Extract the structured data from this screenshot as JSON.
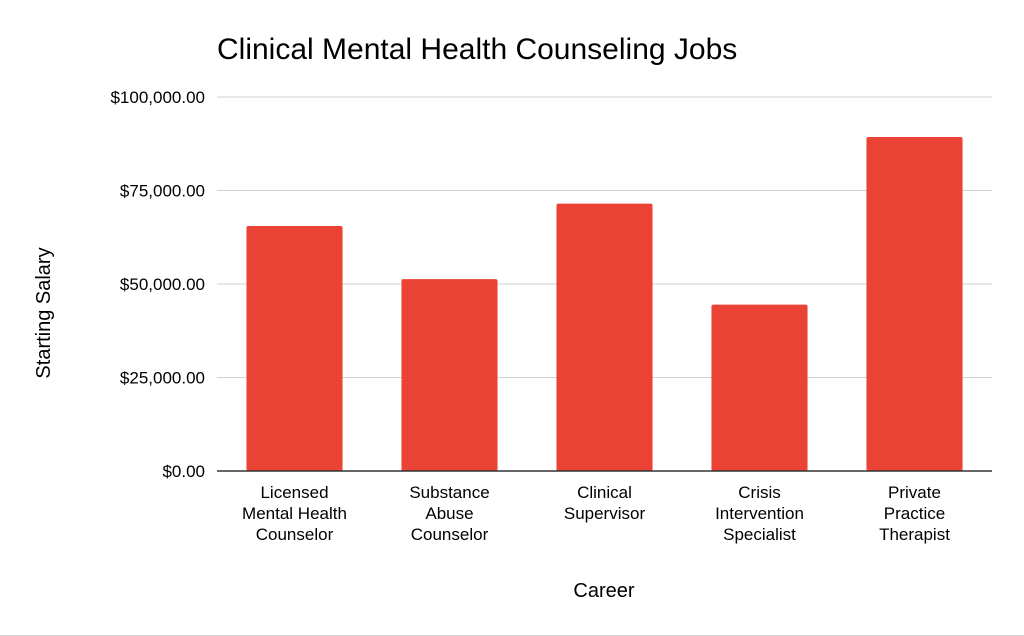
{
  "chart_data": {
    "type": "bar",
    "title": "Clinical Mental Health Counseling Jobs",
    "xlabel": "Career",
    "ylabel": "Starting Salary",
    "categories": [
      [
        "Licensed",
        "Mental Health",
        "Counselor"
      ],
      [
        "Substance",
        "Abuse",
        "Counselor"
      ],
      [
        "Clinical",
        "Supervisor"
      ],
      [
        "Crisis",
        "Intervention",
        "Specialist"
      ],
      [
        "Private",
        "Practice",
        "Therapist"
      ]
    ],
    "values": [
      65500,
      51300,
      71500,
      44500,
      89300
    ],
    "ylim": [
      0,
      100000
    ],
    "yticks": [
      0,
      25000,
      50000,
      75000,
      100000
    ],
    "ytick_labels": [
      "$0.00",
      "$25,000.00",
      "$50,000.00",
      "$75,000.00",
      "$100,000.00"
    ],
    "grid": true,
    "bar_color": "#ea4335",
    "legend": "none"
  }
}
